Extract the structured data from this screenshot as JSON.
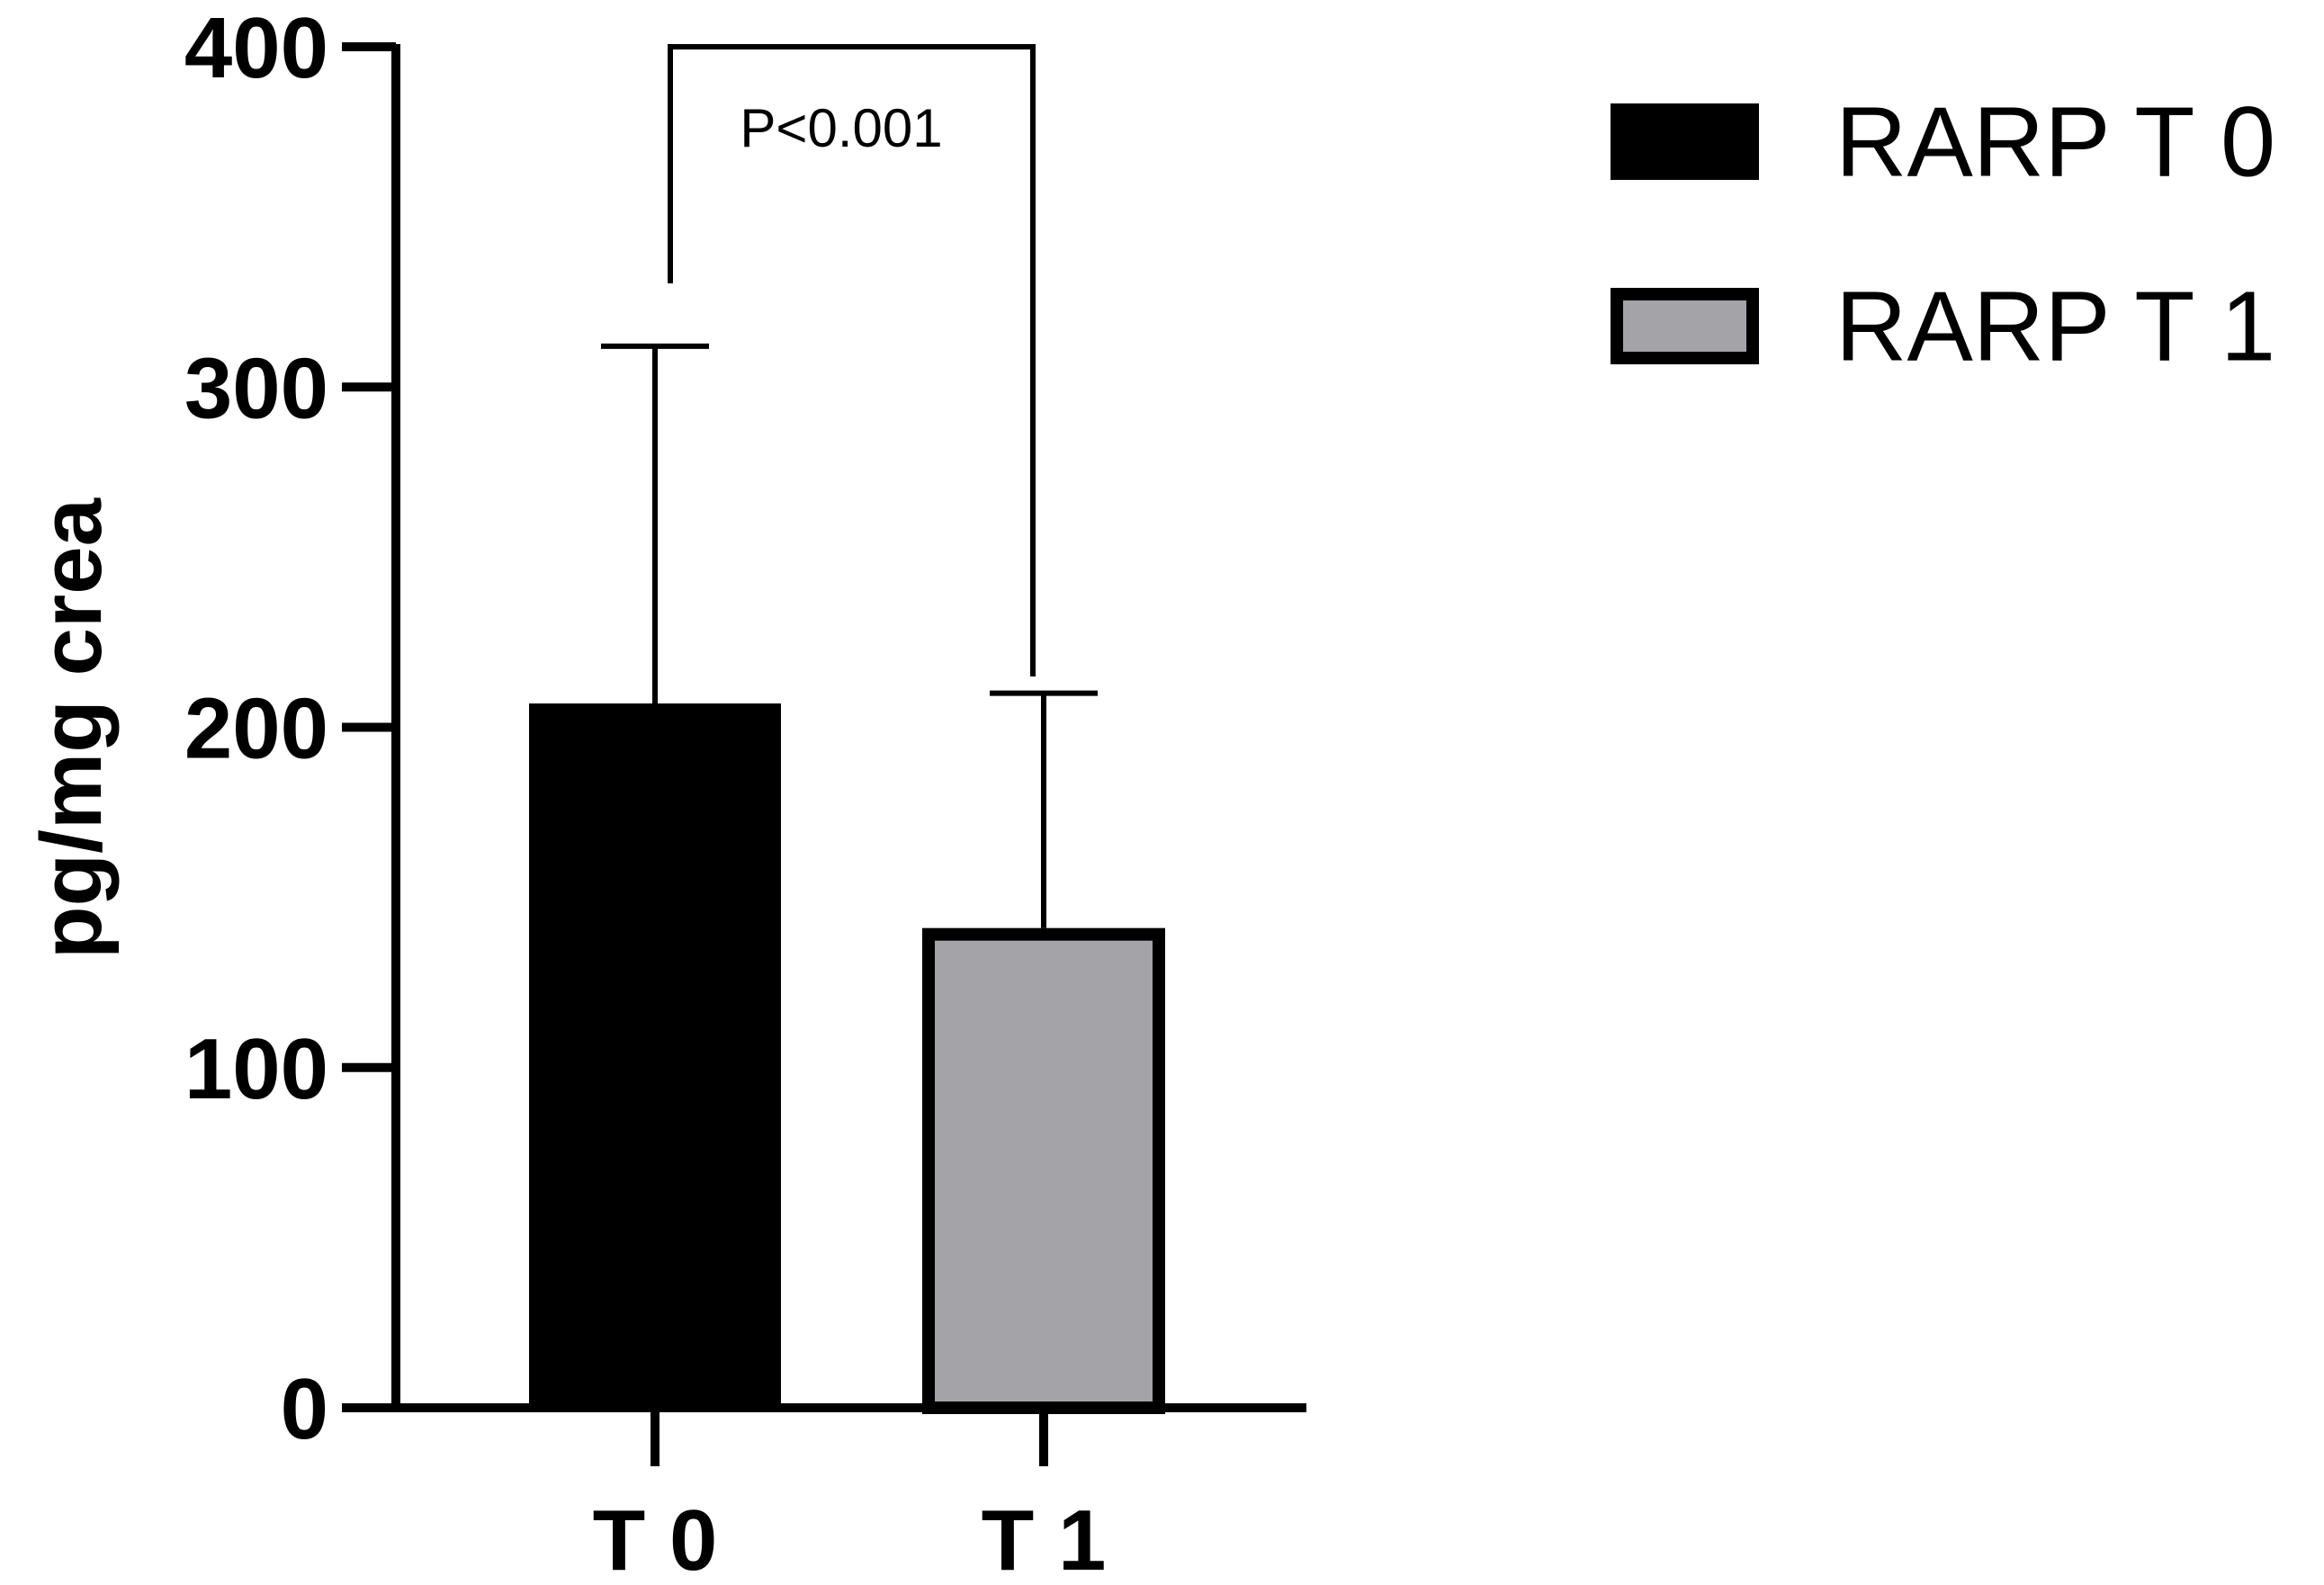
{
  "chart_data": {
    "type": "bar",
    "categories": [
      "T 0",
      "T 1"
    ],
    "values": [
      207,
      141
    ],
    "error_upper": [
      312,
      210
    ],
    "ylabel": "pg/mg crea",
    "ylim": [
      0,
      400
    ],
    "yticks": [
      "0",
      "100",
      "200",
      "300",
      "400"
    ],
    "annotation": "P<0.001",
    "legend": [
      {
        "label": "RARP T 0",
        "color": "#000000"
      },
      {
        "label": "RARP T 1",
        "color": "#a3a3a8"
      }
    ],
    "legend_position": "top-right",
    "grid": false,
    "bar_colors": [
      "#000000",
      "#a3a3a8"
    ]
  }
}
